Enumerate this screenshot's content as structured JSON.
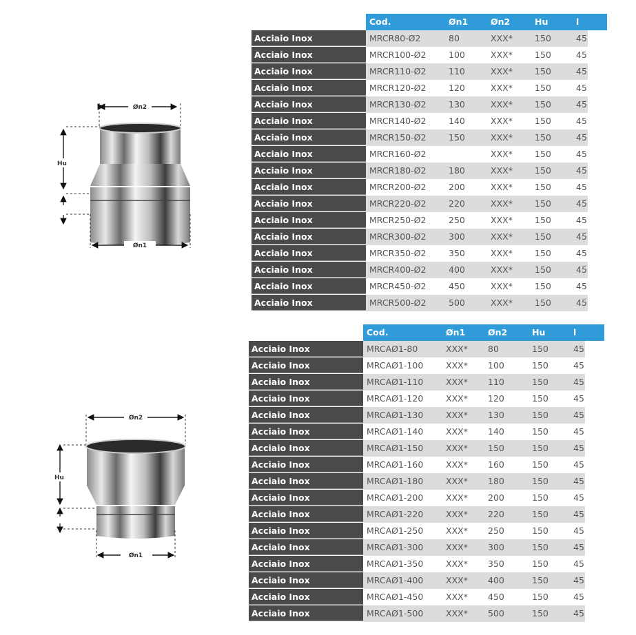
{
  "diagram_labels": {
    "top_diameter": "Øn2",
    "height": "Hu",
    "bottom_diameter": "Øn1"
  },
  "colors": {
    "header": "#2f9bd8",
    "label_column": "#4a4a4a",
    "stripe": "#dcdcdc"
  },
  "table1": {
    "headers": [
      "Cod.",
      "Øn1",
      "Øn2",
      "Hu",
      "l"
    ],
    "rows": [
      {
        "label": "Acciaio Inox",
        "cod": "MRCR80-Ø2",
        "n1": "80",
        "n2": "XXX*",
        "hu": "150",
        "l": "45"
      },
      {
        "label": "Acciaio Inox",
        "cod": "MRCR100-Ø2",
        "n1": "100",
        "n2": "XXX*",
        "hu": "150",
        "l": "45"
      },
      {
        "label": "Acciaio Inox",
        "cod": "MRCR110-Ø2",
        "n1": "110",
        "n2": "XXX*",
        "hu": "150",
        "l": "45"
      },
      {
        "label": "Acciaio Inox",
        "cod": "MRCR120-Ø2",
        "n1": "120",
        "n2": "XXX*",
        "hu": "150",
        "l": "45"
      },
      {
        "label": "Acciaio Inox",
        "cod": "MRCR130-Ø2",
        "n1": "130",
        "n2": "XXX*",
        "hu": "150",
        "l": "45"
      },
      {
        "label": "Acciaio Inox",
        "cod": "MRCR140-Ø2",
        "n1": "140",
        "n2": "XXX*",
        "hu": "150",
        "l": "45"
      },
      {
        "label": "Acciaio Inox",
        "cod": "MRCR150-Ø2",
        "n1": "150",
        "n2": "XXX*",
        "hu": "150",
        "l": "45"
      },
      {
        "label": "Acciaio Inox",
        "cod": "MRCR160-Ø2",
        "n1": "",
        "n2": "XXX*",
        "hu": "150",
        "l": "45"
      },
      {
        "label": "Acciaio Inox",
        "cod": "MRCR180-Ø2",
        "n1": "180",
        "n2": "XXX*",
        "hu": "150",
        "l": "45"
      },
      {
        "label": "Acciaio Inox",
        "cod": "MRCR200-Ø2",
        "n1": "200",
        "n2": "XXX*",
        "hu": "150",
        "l": "45"
      },
      {
        "label": "Acciaio Inox",
        "cod": "MRCR220-Ø2",
        "n1": "220",
        "n2": "XXX*",
        "hu": "150",
        "l": "45"
      },
      {
        "label": "Acciaio Inox",
        "cod": "MRCR250-Ø2",
        "n1": "250",
        "n2": "XXX*",
        "hu": "150",
        "l": "45"
      },
      {
        "label": "Acciaio Inox",
        "cod": "MRCR300-Ø2",
        "n1": "300",
        "n2": "XXX*",
        "hu": "150",
        "l": "45"
      },
      {
        "label": "Acciaio Inox",
        "cod": "MRCR350-Ø2",
        "n1": "350",
        "n2": "XXX*",
        "hu": "150",
        "l": "45"
      },
      {
        "label": "Acciaio Inox",
        "cod": "MRCR400-Ø2",
        "n1": "400",
        "n2": "XXX*",
        "hu": "150",
        "l": "45"
      },
      {
        "label": "Acciaio Inox",
        "cod": "MRCR450-Ø2",
        "n1": "450",
        "n2": "XXX*",
        "hu": "150",
        "l": "45"
      },
      {
        "label": "Acciaio Inox",
        "cod": "MRCR500-Ø2",
        "n1": "500",
        "n2": "XXX*",
        "hu": "150",
        "l": "45"
      }
    ]
  },
  "table2": {
    "headers": [
      "Cod.",
      "Øn1",
      "Øn2",
      "Hu",
      "l"
    ],
    "rows": [
      {
        "label": "Acciaio Inox",
        "cod": "MRCAØ1-80",
        "n1": "XXX*",
        "n2": "80",
        "hu": "150",
        "l": "45"
      },
      {
        "label": "Acciaio Inox",
        "cod": "MRCAØ1-100",
        "n1": "XXX*",
        "n2": "100",
        "hu": "150",
        "l": "45"
      },
      {
        "label": "Acciaio Inox",
        "cod": "MRCAØ1-110",
        "n1": "XXX*",
        "n2": "110",
        "hu": "150",
        "l": "45"
      },
      {
        "label": "Acciaio Inox",
        "cod": "MRCAØ1-120",
        "n1": "XXX*",
        "n2": "120",
        "hu": "150",
        "l": "45"
      },
      {
        "label": "Acciaio Inox",
        "cod": "MRCAØ1-130",
        "n1": "XXX*",
        "n2": "130",
        "hu": "150",
        "l": "45"
      },
      {
        "label": "Acciaio Inox",
        "cod": "MRCAØ1-140",
        "n1": "XXX*",
        "n2": "140",
        "hu": "150",
        "l": "45"
      },
      {
        "label": "Acciaio Inox",
        "cod": "MRCAØ1-150",
        "n1": "XXX*",
        "n2": "150",
        "hu": "150",
        "l": "45"
      },
      {
        "label": "Acciaio Inox",
        "cod": "MRCAØ1-160",
        "n1": "XXX*",
        "n2": "160",
        "hu": "150",
        "l": "45"
      },
      {
        "label": "Acciaio Inox",
        "cod": "MRCAØ1-180",
        "n1": "XXX*",
        "n2": "180",
        "hu": "150",
        "l": "45"
      },
      {
        "label": "Acciaio Inox",
        "cod": "MRCAØ1-200",
        "n1": "XXX*",
        "n2": "200",
        "hu": "150",
        "l": "45"
      },
      {
        "label": "Acciaio Inox",
        "cod": "MRCAØ1-220",
        "n1": "XXX*",
        "n2": "220",
        "hu": "150",
        "l": "45"
      },
      {
        "label": "Acciaio Inox",
        "cod": "MRCAØ1-250",
        "n1": "XXX*",
        "n2": "250",
        "hu": "150",
        "l": "45"
      },
      {
        "label": "Acciaio Inox",
        "cod": "MRCAØ1-300",
        "n1": "XXX*",
        "n2": "300",
        "hu": "150",
        "l": "45"
      },
      {
        "label": "Acciaio Inox",
        "cod": "MRCAØ1-350",
        "n1": "XXX*",
        "n2": "350",
        "hu": "150",
        "l": "45"
      },
      {
        "label": "Acciaio Inox",
        "cod": "MRCAØ1-400",
        "n1": "XXX*",
        "n2": "400",
        "hu": "150",
        "l": "45"
      },
      {
        "label": "Acciaio Inox",
        "cod": "MRCAØ1-450",
        "n1": "XXX*",
        "n2": "450",
        "hu": "150",
        "l": "45"
      },
      {
        "label": "Acciaio Inox",
        "cod": "MRCAØ1-500",
        "n1": "XXX*",
        "n2": "500",
        "hu": "150",
        "l": "45"
      }
    ]
  }
}
